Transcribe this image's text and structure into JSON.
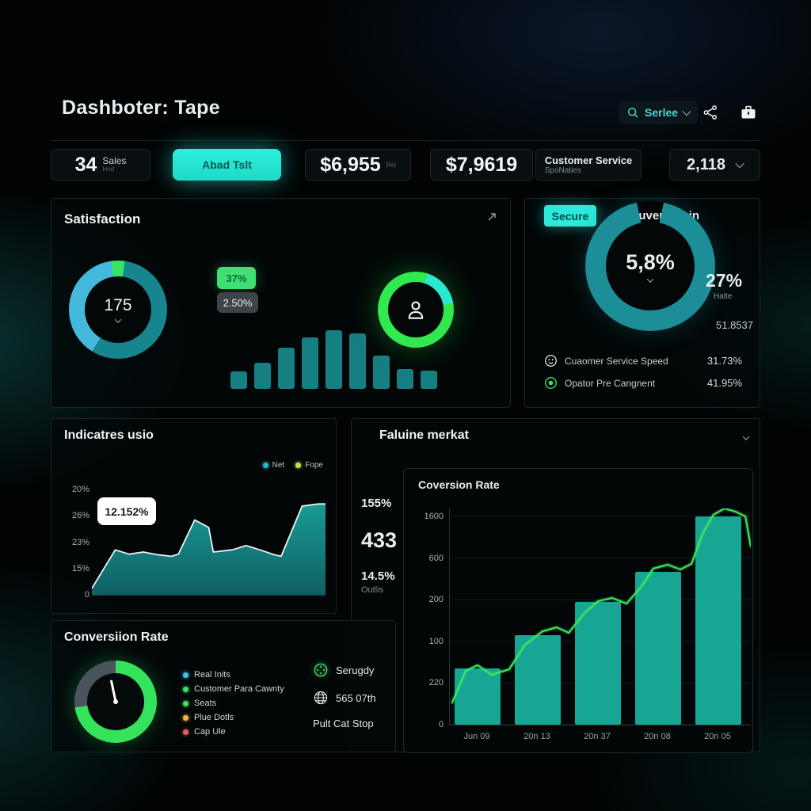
{
  "app": {
    "title": "Dashboter: Tape"
  },
  "header": {
    "search_label": "Serlee"
  },
  "kpis": {
    "sales": {
      "value": "34",
      "label": "Sales",
      "sub": "Hod"
    },
    "action": {
      "label": "Abad Tslt"
    },
    "revenue": {
      "value": "$6,955",
      "sub": "Rel"
    },
    "revenue2": {
      "value": "$7,9619"
    },
    "service": {
      "title": "Customer Service",
      "sub": "SpoNaties"
    },
    "count": {
      "value": "2,118"
    }
  },
  "satisfaction": {
    "title": "Satisfaction",
    "donut_center": "175",
    "badge_green": "37%",
    "badge_gray": "2.50%"
  },
  "customer_login": {
    "badge": "Secure",
    "title": "Custuver Login",
    "center": "5,8%",
    "side_value": "27%",
    "side_label": "Halte",
    "side_number": "51.8537",
    "rows": [
      {
        "icon": "face-icon",
        "label": "Cuaomer Service Speed",
        "value": "31.73%"
      },
      {
        "icon": "green-dot-icon",
        "label": "Opator Pre Cangnent",
        "value": "41.95%"
      }
    ]
  },
  "indicators": {
    "title": "Indicatres usio",
    "legend": [
      {
        "label": "Net",
        "color": "#2fb9c4"
      },
      {
        "label": "Fope",
        "color": "#c8e04e"
      }
    ]
  },
  "conversion": {
    "title": "Conversiion Rate",
    "legend": [
      {
        "label": "Real Inits",
        "color": "#38c6ef"
      },
      {
        "label": "Customer Para Cawnty",
        "color": "#3ddf66"
      },
      {
        "label": "Seats",
        "color": "#3ddf66"
      },
      {
        "label": "Plue Dotls",
        "color": "#efb63e"
      },
      {
        "label": "Cap Ule",
        "color": "#e85a5f"
      }
    ],
    "side": [
      {
        "icon": "serugdy-icon",
        "label": "Serugdy"
      },
      {
        "icon": "globe-icon",
        "label": "565 07th"
      },
      {
        "icon": null,
        "label": "Pult Cat Stop"
      }
    ]
  },
  "faluine": {
    "title": "Faluine merkat",
    "stats": [
      {
        "value": "155%"
      },
      {
        "value": "433"
      },
      {
        "value": "14.5%",
        "sub": "Outlis"
      }
    ]
  },
  "chart_data": [
    {
      "type": "pie",
      "name": "satisfaction-donut",
      "center_label": "175",
      "segments": [
        {
          "name": "green",
          "deg": 8,
          "color": "#38e463"
        },
        {
          "name": "teal",
          "deg": 204,
          "color": "#17858d"
        },
        {
          "name": "cyan",
          "deg": 140,
          "color": "#45b9dc"
        },
        {
          "name": "green",
          "deg": 8,
          "color": "#38e463"
        }
      ]
    },
    {
      "type": "bar",
      "name": "satisfaction-mini-bars",
      "color": "#157f82",
      "values": [
        22,
        33,
        52,
        65,
        74,
        70,
        42,
        25,
        23
      ]
    },
    {
      "type": "pie",
      "name": "agents-donut",
      "segments": [
        {
          "name": "green",
          "deg": 18,
          "color": "#30e94f"
        },
        {
          "name": "cyan",
          "deg": 62,
          "color": "#2be8d0"
        },
        {
          "name": "green",
          "deg": 280,
          "color": "#30e94f"
        }
      ]
    },
    {
      "type": "pie",
      "name": "customer-login-donut",
      "center_label": "5,8%",
      "ring_color": "#1b8e97",
      "gap_deg": 24
    },
    {
      "type": "area",
      "name": "indicators-area",
      "tooltip": "12.152%",
      "y_ticks": [
        "20%",
        "26%",
        "23%",
        "15%",
        "0"
      ],
      "fill_top": "#1a9a93",
      "fill_bottom": "#0f5f63",
      "stroke": "#edf4f4",
      "points": [
        [
          0,
          0.06
        ],
        [
          0.1,
          0.42
        ],
        [
          0.16,
          0.38
        ],
        [
          0.22,
          0.4
        ],
        [
          0.28,
          0.375
        ],
        [
          0.34,
          0.36
        ],
        [
          0.37,
          0.38
        ],
        [
          0.44,
          0.7
        ],
        [
          0.5,
          0.63
        ],
        [
          0.52,
          0.4
        ],
        [
          0.6,
          0.42
        ],
        [
          0.66,
          0.46
        ],
        [
          0.72,
          0.42
        ],
        [
          0.78,
          0.375
        ],
        [
          0.81,
          0.36
        ],
        [
          0.9,
          0.83
        ],
        [
          0.97,
          0.85
        ],
        [
          1,
          0.85
        ]
      ]
    },
    {
      "type": "gauge",
      "name": "conversion-gauge",
      "needle_deg": -12,
      "segments": [
        {
          "name": "green",
          "deg": 262,
          "color": "#35e25b"
        },
        {
          "name": "gray",
          "deg": 98,
          "color": "#4a545c"
        }
      ]
    },
    {
      "type": "bar+line",
      "name": "faluine-chart",
      "title": "Coversion Rate",
      "categories": [
        "Jun 09",
        "20n 13",
        "20n 37",
        "20n 08",
        "20n 05"
      ],
      "y_ticks": [
        "1600",
        "600",
        "200",
        "100",
        "220",
        "0"
      ],
      "bar_values": [
        0.26,
        0.414,
        0.568,
        0.707,
        0.963
      ],
      "bar_color": "#16a693",
      "line_color": "#3ce85f",
      "line_points": [
        [
          0.008,
          0.103
        ],
        [
          0.053,
          0.249
        ],
        [
          0.092,
          0.275
        ],
        [
          0.139,
          0.231
        ],
        [
          0.197,
          0.256
        ],
        [
          0.25,
          0.37
        ],
        [
          0.308,
          0.432
        ],
        [
          0.355,
          0.45
        ],
        [
          0.395,
          0.425
        ],
        [
          0.447,
          0.516
        ],
        [
          0.492,
          0.571
        ],
        [
          0.539,
          0.586
        ],
        [
          0.587,
          0.56
        ],
        [
          0.634,
          0.634
        ],
        [
          0.676,
          0.722
        ],
        [
          0.724,
          0.74
        ],
        [
          0.766,
          0.718
        ],
        [
          0.803,
          0.744
        ],
        [
          0.842,
          0.89
        ],
        [
          0.876,
          0.971
        ],
        [
          0.913,
          1.0
        ],
        [
          0.95,
          0.985
        ],
        [
          0.982,
          0.963
        ],
        [
          1.0,
          0.824
        ]
      ]
    }
  ]
}
